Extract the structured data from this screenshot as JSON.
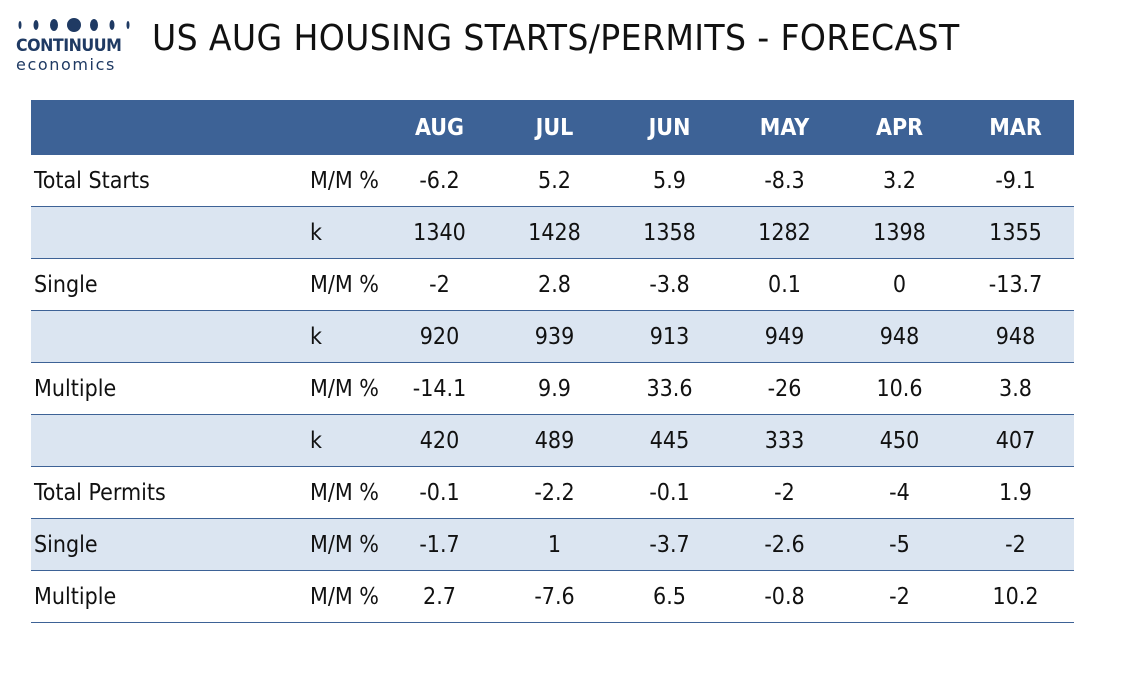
{
  "logo": {
    "brand": "CONTINUUM",
    "sub": "economics"
  },
  "title": "US AUG HOUSING STARTS/PERMITS - FORECAST",
  "colors": {
    "header_bg": "#3d6296",
    "alt_row_bg": "#dbe5f1",
    "logo_blue": "#1f3a63"
  },
  "chart_data": {
    "type": "table",
    "title": "US AUG HOUSING STARTS/PERMITS - FORECAST",
    "columns": [
      "AUG",
      "JUL",
      "JUN",
      "MAY",
      "APR",
      "MAR"
    ],
    "rows": [
      {
        "label": "Total Starts",
        "unit": "M/M %",
        "values": [
          "-6.2",
          "5.2",
          "5.9",
          "-8.3",
          "3.2",
          "-9.1"
        ]
      },
      {
        "label": "",
        "unit": "k",
        "values": [
          "1340",
          "1428",
          "1358",
          "1282",
          "1398",
          "1355"
        ]
      },
      {
        "label": "Single",
        "unit": "M/M %",
        "values": [
          "-2",
          "2.8",
          "-3.8",
          "0.1",
          "0",
          "-13.7"
        ]
      },
      {
        "label": "",
        "unit": "k",
        "values": [
          "920",
          "939",
          "913",
          "949",
          "948",
          "948"
        ]
      },
      {
        "label": "Multiple",
        "unit": "M/M %",
        "values": [
          "-14.1",
          "9.9",
          "33.6",
          "-26",
          "10.6",
          "3.8"
        ]
      },
      {
        "label": "",
        "unit": "k",
        "values": [
          "420",
          "489",
          "445",
          "333",
          "450",
          "407"
        ]
      },
      {
        "label": "Total Permits",
        "unit": "M/M %",
        "values": [
          "-0.1",
          "-2.2",
          "-0.1",
          "-2",
          "-4",
          "1.9"
        ]
      },
      {
        "label": "Single",
        "unit": "M/M %",
        "values": [
          "-1.7",
          "1",
          "-3.7",
          "-2.6",
          "-5",
          "-2"
        ]
      },
      {
        "label": "Multiple",
        "unit": "M/M %",
        "values": [
          "2.7",
          "-7.6",
          "6.5",
          "-0.8",
          "-2",
          "10.2"
        ]
      }
    ]
  }
}
